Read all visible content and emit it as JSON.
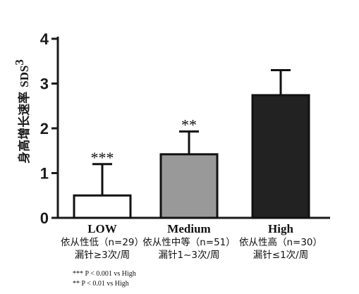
{
  "chart_data": {
    "type": "bar",
    "ylabel": "身高增长速率 SDS³",
    "ylabel_cn": "身高增长速率",
    "ylabel_en": "SDS",
    "ylabel_sup": "3",
    "ylim": [
      0,
      4
    ],
    "yticks": [
      "0",
      "1",
      "2",
      "3",
      "4"
    ],
    "grid": false,
    "legend": "none",
    "categories": [
      {
        "name": "LOW",
        "line1": "依从性低（n=29）",
        "line2": "漏针≥3次/周"
      },
      {
        "name": "Medium",
        "line1": "依从性中等（n=51）",
        "line2": "漏针1~3次/周"
      },
      {
        "name": "High",
        "line1": "依从性高（n=30）",
        "line2": "漏针≤1次/周"
      }
    ],
    "values": [
      0.5,
      1.42,
      2.74
    ],
    "error_upper": [
      1.2,
      1.93,
      3.3
    ],
    "significance": [
      "***",
      "**",
      ""
    ],
    "bar_colors": [
      "#ffffff",
      "#999999",
      "#222222"
    ],
    "notes": [
      "*** P < 0.001 vs High",
      "** P < 0.01 vs High"
    ]
  }
}
